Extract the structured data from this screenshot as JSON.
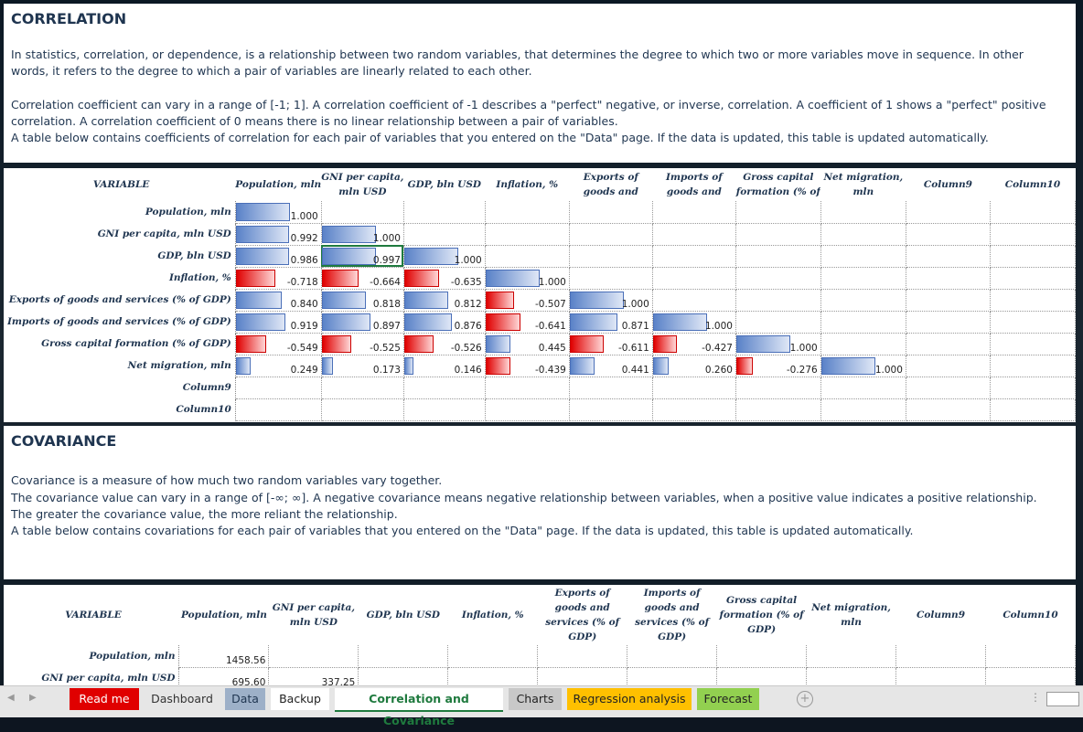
{
  "correlation": {
    "title": "CORRELATION",
    "para1": "In statistics, correlation, or dependence, is a relationship between two random variables, that determines the degree to which two or more variables move in sequence.  In other words, it refers to the degree to which a pair of variables are linearly related to each other.",
    "para2": "Correlation coefficient can vary in a range of [-1; 1]. A correlation coefficient of -1 describes a \"perfect\" negative, or inverse, correlation. A coefficient of 1 shows a \"perfect\" positive correlation. A correlation coefficient of 0 means there is no linear relationship between a pair of variables.",
    "para3": "A table below contains coefficients of correlation for each pair of variables that you entered on the \"Data\" page. If the data is  updated, this table  is updated automatically.",
    "headers": [
      "VARIABLE",
      "Population, mln",
      "GNI per capita, mln USD",
      "GDP, bln USD",
      "Inflation, %",
      "Exports of goods and",
      "Imports of goods and",
      "Gross capital formation (% of",
      "Net migration, mln",
      "Column9",
      "Column10"
    ],
    "rows": [
      {
        "label": "Population, mln",
        "values": [
          "1.000"
        ]
      },
      {
        "label": "GNI per capita, mln USD",
        "values": [
          "0.992",
          "1.000"
        ]
      },
      {
        "label": "GDP, bln USD",
        "values": [
          "0.986",
          "0.997",
          "1.000"
        ]
      },
      {
        "label": "Inflation, %",
        "values": [
          "-0.718",
          "-0.664",
          "-0.635",
          "1.000"
        ]
      },
      {
        "label": "Exports of goods and services (% of GDP)",
        "values": [
          "0.840",
          "0.818",
          "0.812",
          "-0.507",
          "1.000"
        ]
      },
      {
        "label": "Imports of goods and services (% of GDP)",
        "values": [
          "0.919",
          "0.897",
          "0.876",
          "-0.641",
          "0.871",
          "1.000"
        ]
      },
      {
        "label": "Gross capital formation (% of GDP)",
        "values": [
          "-0.549",
          "-0.525",
          "-0.526",
          "0.445",
          "-0.611",
          "-0.427",
          "1.000"
        ]
      },
      {
        "label": "Net migration, mln",
        "values": [
          "0.249",
          "0.173",
          "0.146",
          "-0.439",
          "0.441",
          "0.260",
          "-0.276",
          "1.000"
        ]
      },
      {
        "label": "Column9",
        "values": []
      },
      {
        "label": "Column10",
        "values": []
      }
    ]
  },
  "covariance": {
    "title": "COVARIANCE",
    "para1": "Covariance is a measure of how much two random variables vary together.",
    "para2": "The covariance value can vary in a range of [-∞; ∞].  A negative covariance means negative relationship between variables, when a positive value indicates a positive relationship.",
    "para3": "The greater the covariance value, the more reliant the relationship.",
    "para4": "A table below contains covariations for each pair of variables that you entered on the \"Data\" page. If the data is  updated, this table  is updated automatically.",
    "headers": [
      "VARIABLE",
      "Population, mln",
      "GNI per capita, mln USD",
      "GDP, bln USD",
      "Inflation, %",
      "Exports of goods and services (% of GDP)",
      "Imports of goods and services (% of GDP)",
      "Gross capital formation (% of GDP)",
      "Net migration, mln",
      "Column9",
      "Column10"
    ],
    "rows": [
      {
        "label": "Population, mln",
        "values": [
          "1458.56"
        ]
      },
      {
        "label": "GNI per capita, mln USD",
        "values": [
          "695.60",
          "337.25"
        ]
      }
    ]
  },
  "tabs": [
    {
      "label": "Read me",
      "bg": "#e00000",
      "color": "#ffffff"
    },
    {
      "label": "Dashboard",
      "bg": "transparent",
      "color": "#333333"
    },
    {
      "label": "Data",
      "bg": "#9db0c8",
      "color": "#1f3550"
    },
    {
      "label": "Backup",
      "bg": "#ffffff",
      "color": "#222222"
    },
    {
      "label": "Correlation and Covariance",
      "bg": "#ffffff",
      "color": "#1f7a3e",
      "active": true
    },
    {
      "label": "Charts",
      "bg": "#c8c8c8",
      "color": "#222222"
    },
    {
      "label": "Regression analysis",
      "bg": "#ffc000",
      "color": "#222222"
    },
    {
      "label": "Forecast",
      "bg": "#92d050",
      "color": "#222222"
    }
  ],
  "icons": {
    "prev": "chevron-left-icon",
    "next": "chevron-right-icon",
    "add": "add-sheet-icon",
    "options": "more-options-icon"
  }
}
